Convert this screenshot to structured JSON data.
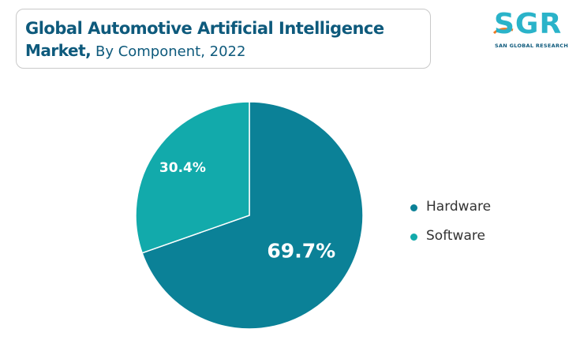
{
  "header": {
    "title_line1": "Global Automotive Artificial Intelligence",
    "title_bold": "Market,",
    "title_rest": " By Component, 2022"
  },
  "logo": {
    "text": "SGR",
    "subtext": "SAN GLOBAL RESEARCH"
  },
  "chart_data": {
    "type": "pie",
    "categories": [
      "Hardware",
      "Software"
    ],
    "values": [
      69.7,
      30.4
    ],
    "data_labels": [
      "69.7%",
      "30.4%"
    ],
    "colors": [
      "#0b8197",
      "#12aaab"
    ],
    "legend_position": "right"
  }
}
